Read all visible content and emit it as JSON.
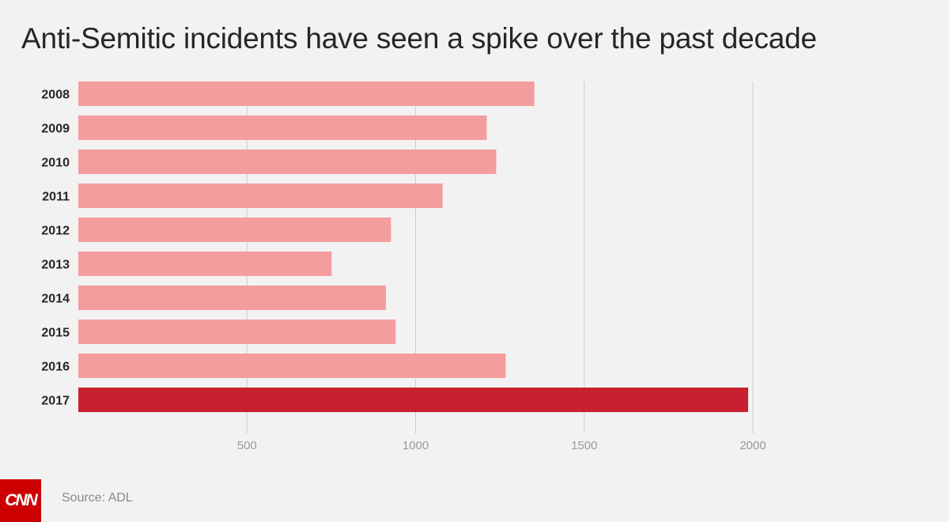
{
  "title": "Anti-Semitic incidents have seen a spike over the past decade",
  "source": "Source: ADL",
  "logo": {
    "icon": "cnn-logo",
    "text": "CNN"
  },
  "colors": {
    "bar": "#f49d9f",
    "highlight": "#c8202e",
    "grid": "#cccccc",
    "tick": "#9a9a9a",
    "label": "#262626"
  },
  "chart_data": {
    "type": "bar",
    "orientation": "horizontal",
    "title": "Anti-Semitic incidents have seen a spike over the past decade",
    "categories": [
      "2008",
      "2009",
      "2010",
      "2011",
      "2012",
      "2013",
      "2014",
      "2015",
      "2016",
      "2017"
    ],
    "values": [
      1352,
      1211,
      1239,
      1080,
      927,
      751,
      912,
      941,
      1267,
      1986
    ],
    "highlight_category": "2017",
    "xlim": [
      0,
      2000
    ],
    "xticks": [
      500,
      1000,
      1500,
      2000
    ],
    "grid": true,
    "xlabel": "",
    "ylabel": ""
  }
}
